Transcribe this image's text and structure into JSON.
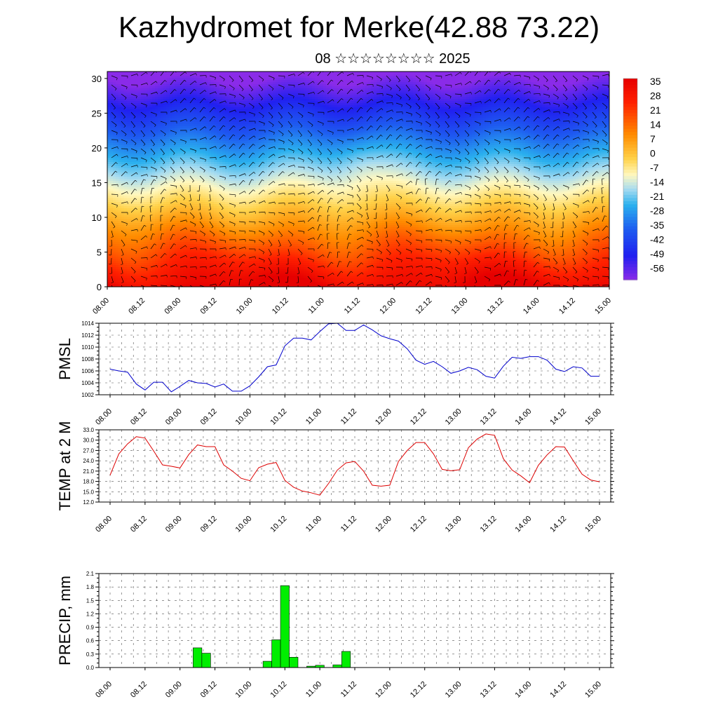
{
  "header": {
    "title": "Kazhydromet for Merke(42.88 73.22)",
    "subtitle": "08 ☆☆☆☆☆☆☆☆ 2025"
  },
  "chart_data": [
    {
      "type": "heatmap",
      "description_key": "cross-section",
      "x_tick_labels": [
        "08.00",
        "08.12",
        "09.00",
        "09.12",
        "10.00",
        "10.12",
        "11.00",
        "11.12",
        "12.00",
        "12.12",
        "13.00",
        "13.12",
        "14.00",
        "14.12",
        "15.00"
      ],
      "y_ticks": [
        0,
        5,
        10,
        15,
        20,
        25,
        30
      ],
      "ylim": [
        0,
        31
      ],
      "colorbar_labels": [
        "35",
        "28",
        "21",
        "14",
        "7",
        "0",
        "-7",
        "-14",
        "-21",
        "-28",
        "-35",
        "-42",
        "-49",
        "-56"
      ],
      "color_stops": [
        {
          "t": 0.0,
          "color": "#e60000"
        },
        {
          "t": 0.12,
          "color": "#ff2000"
        },
        {
          "t": 0.28,
          "color": "#ff8c00"
        },
        {
          "t": 0.4,
          "color": "#ffd24a"
        },
        {
          "t": 0.48,
          "color": "#fff8c0"
        },
        {
          "t": 0.55,
          "color": "#a8dcf0"
        },
        {
          "t": 0.63,
          "color": "#2ab0ee"
        },
        {
          "t": 0.75,
          "color": "#1e5cf0"
        },
        {
          "t": 0.88,
          "color": "#2020f0"
        },
        {
          "t": 1.0,
          "color": "#8a2be8"
        }
      ],
      "grid": false
    },
    {
      "type": "line",
      "ylabel": "PMSL",
      "ylim": [
        1002,
        1014
      ],
      "y_ticks": [
        "1002",
        "1004",
        "1006",
        "1008",
        "1010",
        "1012",
        "1014"
      ],
      "x_tick_labels": [
        "08.00",
        "08.12",
        "09.00",
        "09.12",
        "10.00",
        "10.12",
        "11.00",
        "11.12",
        "12.00",
        "12.12",
        "13.00",
        "13.12",
        "14.00",
        "14.12",
        "15.00"
      ],
      "color": "#0000cc",
      "grid": true,
      "values": [
        1006.3,
        1006.0,
        1005.8,
        1003.8,
        1002.8,
        1004.1,
        1004.1,
        1002.5,
        1003.4,
        1004.4,
        1004.0,
        1003.9,
        1003.3,
        1003.8,
        1002.6,
        1002.6,
        1003.5,
        1005.0,
        1006.7,
        1007.0,
        1010.2,
        1011.5,
        1011.5,
        1011.2,
        1012.6,
        1013.9,
        1014.0,
        1012.8,
        1012.8,
        1013.7,
        1012.9,
        1011.9,
        1011.4,
        1011.0,
        1009.7,
        1007.8,
        1007.1,
        1007.6,
        1006.7,
        1005.6,
        1006.0,
        1006.6,
        1006.2,
        1005.1,
        1004.8,
        1006.8,
        1008.3,
        1008.1,
        1008.4,
        1008.4,
        1007.8,
        1006.3,
        1005.9,
        1006.7,
        1006.5,
        1005.1,
        1005.1
      ]
    },
    {
      "type": "line",
      "ylabel": "TEMP at 2 M",
      "ylim": [
        12,
        33
      ],
      "y_ticks": [
        "12.0",
        "15.0",
        "18.0",
        "21.0",
        "24.0",
        "27.0",
        "30.0",
        "33.0"
      ],
      "x_tick_labels": [
        "08.00",
        "08.12",
        "09.00",
        "09.12",
        "10.00",
        "10.12",
        "11.00",
        "11.12",
        "12.00",
        "12.12",
        "13.00",
        "13.12",
        "14.00",
        "14.12",
        "15.00"
      ],
      "color": "#dd0000",
      "grid": true,
      "values": [
        19.8,
        26.0,
        28.9,
        31.0,
        30.6,
        26.8,
        22.8,
        22.4,
        21.9,
        25.8,
        28.6,
        28.1,
        28.1,
        22.8,
        21.0,
        18.9,
        18.2,
        22.0,
        23.0,
        23.5,
        18.3,
        16.3,
        15.2,
        14.7,
        14.0,
        17.4,
        21.3,
        23.4,
        23.8,
        21.0,
        16.9,
        16.6,
        16.9,
        23.8,
        27.0,
        29.3,
        29.3,
        26.0,
        21.5,
        21.1,
        21.4,
        27.8,
        30.3,
        31.8,
        31.4,
        24.6,
        21.3,
        19.6,
        17.6,
        22.7,
        25.7,
        28.1,
        28.0,
        24.0,
        20.1,
        18.4,
        17.9
      ]
    },
    {
      "type": "bar",
      "ylabel": "PRECIP, mm",
      "ylim": [
        0,
        2.1
      ],
      "y_ticks": [
        "0.0",
        "0.3",
        "0.6",
        "0.9",
        "1.2",
        "1.5",
        "1.8",
        "2.1"
      ],
      "x_tick_labels": [
        "08.00",
        "08.12",
        "09.00",
        "09.12",
        "10.00",
        "10.12",
        "11.00",
        "11.12",
        "12.00",
        "12.12",
        "13.00",
        "13.12",
        "14.00",
        "14.12",
        "15.00"
      ],
      "color": "#00ee00",
      "grid": true,
      "values": [
        0,
        0,
        0,
        0,
        0,
        0,
        0,
        0,
        0,
        0,
        0.44,
        0.32,
        0,
        0,
        0,
        0,
        0,
        0,
        0.14,
        0.62,
        1.83,
        0.23,
        0,
        0.03,
        0.05,
        0,
        0.06,
        0.36,
        0,
        0,
        0,
        0,
        0,
        0,
        0,
        0,
        0,
        0,
        0,
        0,
        0,
        0,
        0,
        0,
        0,
        0,
        0,
        0,
        0,
        0,
        0,
        0,
        0,
        0,
        0,
        0,
        0
      ]
    }
  ]
}
